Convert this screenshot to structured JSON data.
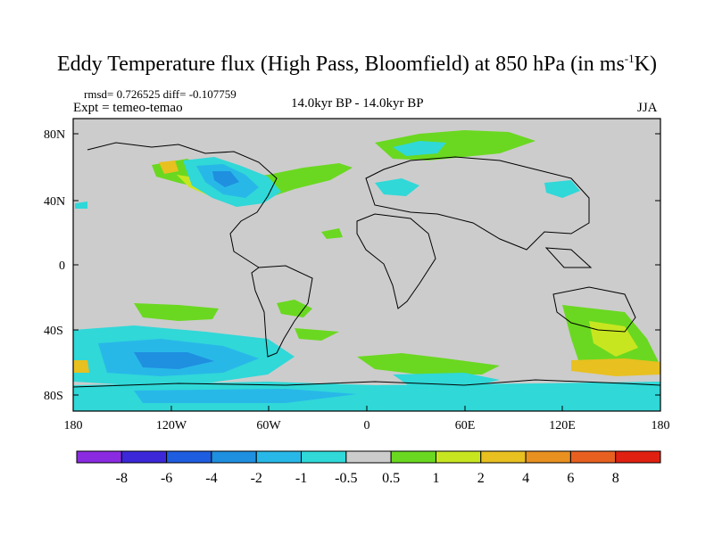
{
  "title": {
    "main": "Eddy Temperature flux (High Pass, Bloomfield) at 850 hPa (in ms",
    "sup": "-1",
    "tail": "K)"
  },
  "stats": "rmsd= 0.726525 diff= -0.107759",
  "expt": "Expt = temeo-temao",
  "period": "14.0kyr BP - 14.0kyr BP",
  "season": "JJA",
  "axes": {
    "y_ticks": [
      "80N",
      "40N",
      "0",
      "40S",
      "80S"
    ],
    "x_ticks": [
      "180",
      "120W",
      "60W",
      "0",
      "60E",
      "120E",
      "180"
    ]
  },
  "colorbar": {
    "labels": [
      "-8",
      "-6",
      "-4",
      "-2",
      "-1",
      "-0.5",
      "0.5",
      "1",
      "2",
      "4",
      "6",
      "8"
    ],
    "colors": [
      "#8a2be2",
      "#3c28d8",
      "#1f5de0",
      "#1f8fe0",
      "#28b8e8",
      "#30d8d8",
      "#cccccc",
      "#6ad820",
      "#c8e620",
      "#e8c020",
      "#e89020",
      "#e86020",
      "#e02010"
    ]
  },
  "map_colors": {
    "land_ocean": "#cccccc",
    "coast": "#000000"
  }
}
